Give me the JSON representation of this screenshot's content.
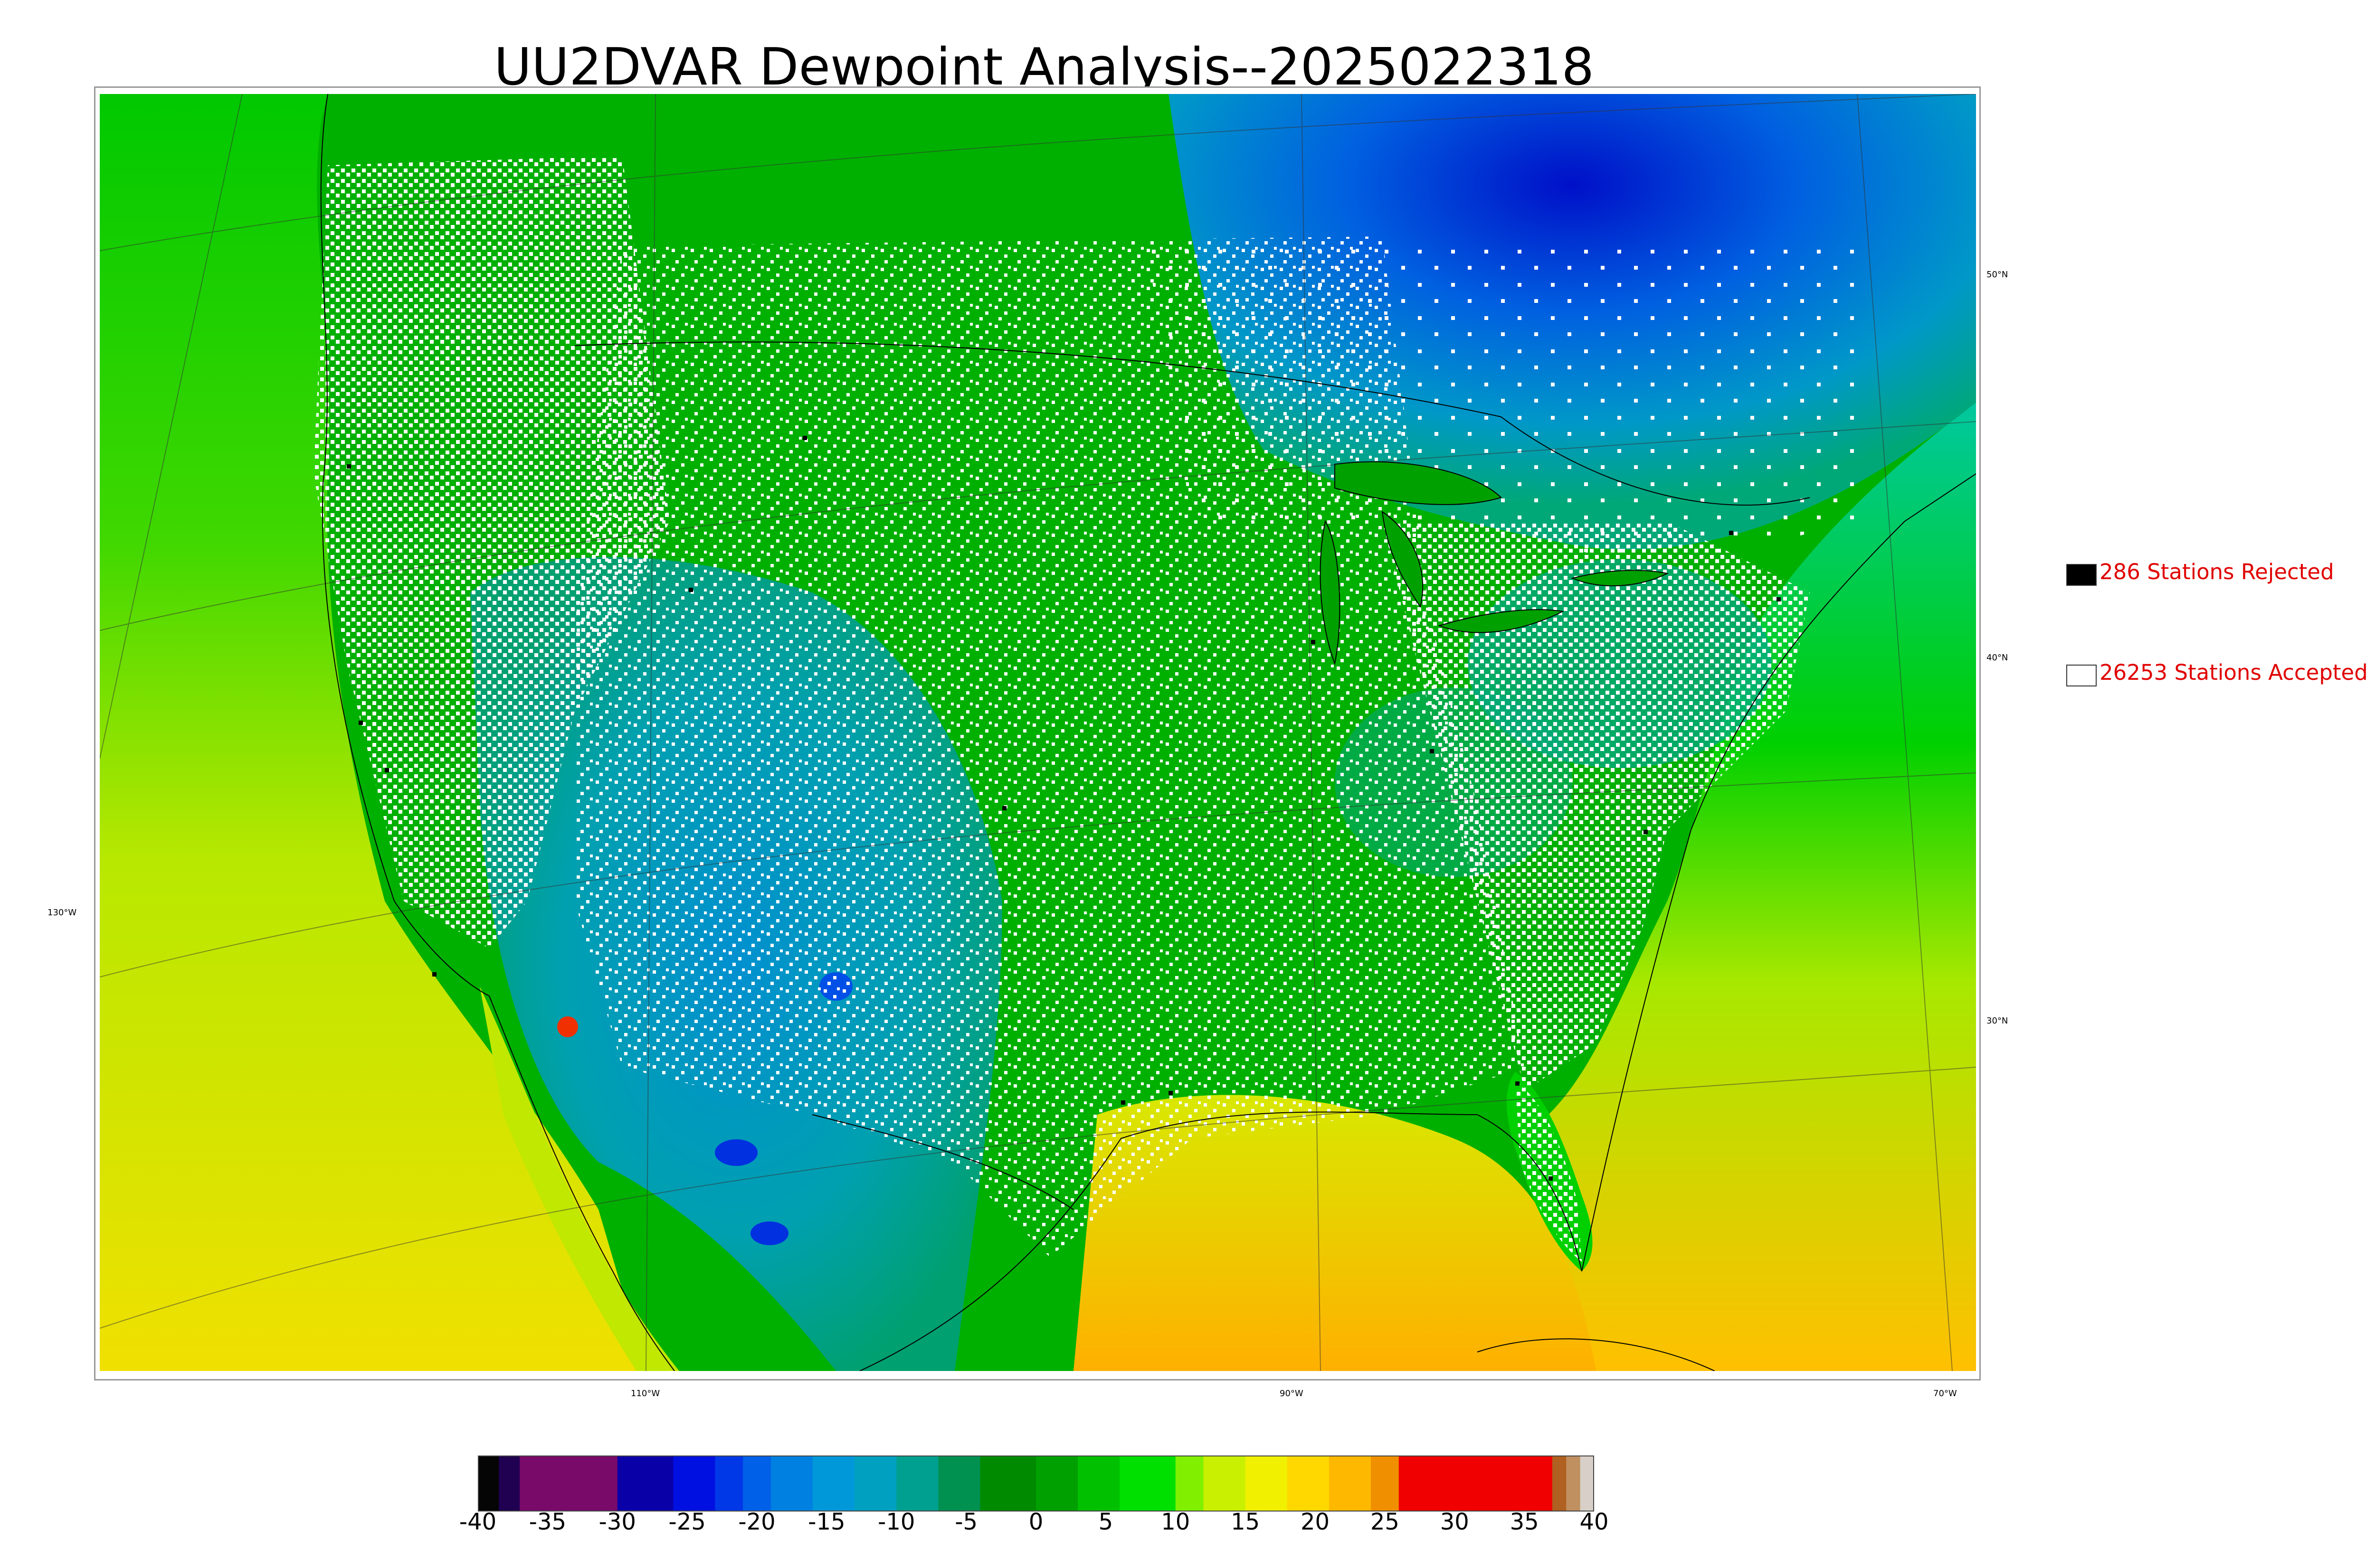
{
  "title": "UU2DVAR Dewpoint Analysis--2025022318",
  "legend": {
    "rejected": {
      "label": "286 Stations Rejected",
      "swatch_color": "#000000"
    },
    "accepted": {
      "label": "26253 Stations Accepted",
      "swatch_color": "#ffffff"
    }
  },
  "graticule": {
    "longitudes": [
      "130°W",
      "110°W",
      "90°W",
      "70°W"
    ],
    "latitudes": [
      "50°N",
      "40°N",
      "30°N"
    ]
  },
  "colorbar": {
    "ticks": [
      "-40",
      "-35",
      "-30",
      "-25",
      "-20",
      "-15",
      "-10",
      "-5",
      "0",
      "5",
      "10",
      "15",
      "20",
      "25",
      "30",
      "35",
      "40"
    ],
    "min": -40,
    "max": 40,
    "bands": [
      {
        "from": -40,
        "to": -38.5,
        "color": "#050505"
      },
      {
        "from": -38.5,
        "to": -37,
        "color": "#200050"
      },
      {
        "from": -37,
        "to": -30,
        "color": "#7a0a6a"
      },
      {
        "from": -30,
        "to": -26,
        "color": "#0a00a8"
      },
      {
        "from": -26,
        "to": -23,
        "color": "#0010e0"
      },
      {
        "from": -23,
        "to": -21,
        "color": "#0038e8"
      },
      {
        "from": -21,
        "to": -19,
        "color": "#0060e8"
      },
      {
        "from": -19,
        "to": -16,
        "color": "#0080e0"
      },
      {
        "from": -16,
        "to": -13,
        "color": "#0098d8"
      },
      {
        "from": -13,
        "to": -10,
        "color": "#00a0c0"
      },
      {
        "from": -10,
        "to": -7,
        "color": "#00a090"
      },
      {
        "from": -7,
        "to": -4,
        "color": "#009050"
      },
      {
        "from": -4,
        "to": 0,
        "color": "#008a00"
      },
      {
        "from": 0,
        "to": 3,
        "color": "#00a000"
      },
      {
        "from": 3,
        "to": 6,
        "color": "#00c000"
      },
      {
        "from": 6,
        "to": 10,
        "color": "#00e000"
      },
      {
        "from": 10,
        "to": 12,
        "color": "#80f000"
      },
      {
        "from": 12,
        "to": 15,
        "color": "#c8f000"
      },
      {
        "from": 15,
        "to": 18,
        "color": "#f0f000"
      },
      {
        "from": 18,
        "to": 21,
        "color": "#ffd800"
      },
      {
        "from": 21,
        "to": 24,
        "color": "#ffb800"
      },
      {
        "from": 24,
        "to": 26,
        "color": "#f09000"
      },
      {
        "from": 26,
        "to": 37,
        "color": "#f00000"
      },
      {
        "from": 37,
        "to": 38,
        "color": "#b06020"
      },
      {
        "from": 38,
        "to": 39,
        "color": "#c09060"
      },
      {
        "from": 39,
        "to": 40,
        "color": "#d8d0c8"
      }
    ]
  },
  "station_counts": {
    "rejected": 286,
    "accepted": 26253
  }
}
